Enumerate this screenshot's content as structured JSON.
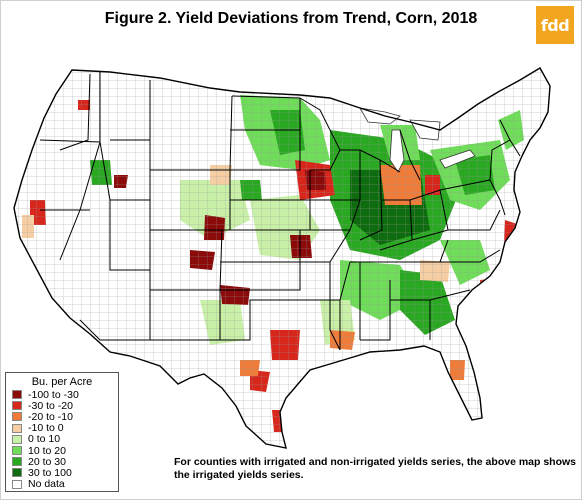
{
  "title": "Figure 2.  Yield Deviations from Trend, Corn, 2018",
  "logo_text": "fdd",
  "legend": {
    "title": "Bu. per Acre",
    "items": [
      {
        "label": "-100 to -30",
        "color": "#8b0a0a"
      },
      {
        "label": "-30 to -20",
        "color": "#d7261b"
      },
      {
        "label": "-20 to -10",
        "color": "#f07c3a"
      },
      {
        "label": "-10 to 0",
        "color": "#f5cfa3"
      },
      {
        "label": "0 to 10",
        "color": "#c9f0a8"
      },
      {
        "label": "10 to 20",
        "color": "#6fdc5a"
      },
      {
        "label": "20 to 30",
        "color": "#2aa822"
      },
      {
        "label": "30 to 100",
        "color": "#0f6b0f"
      },
      {
        "label": "No data",
        "color": "#ffffff"
      }
    ]
  },
  "note": "For counties with irrigated and non-irrigated yields series, the above map shows the irrigated yields series."
}
